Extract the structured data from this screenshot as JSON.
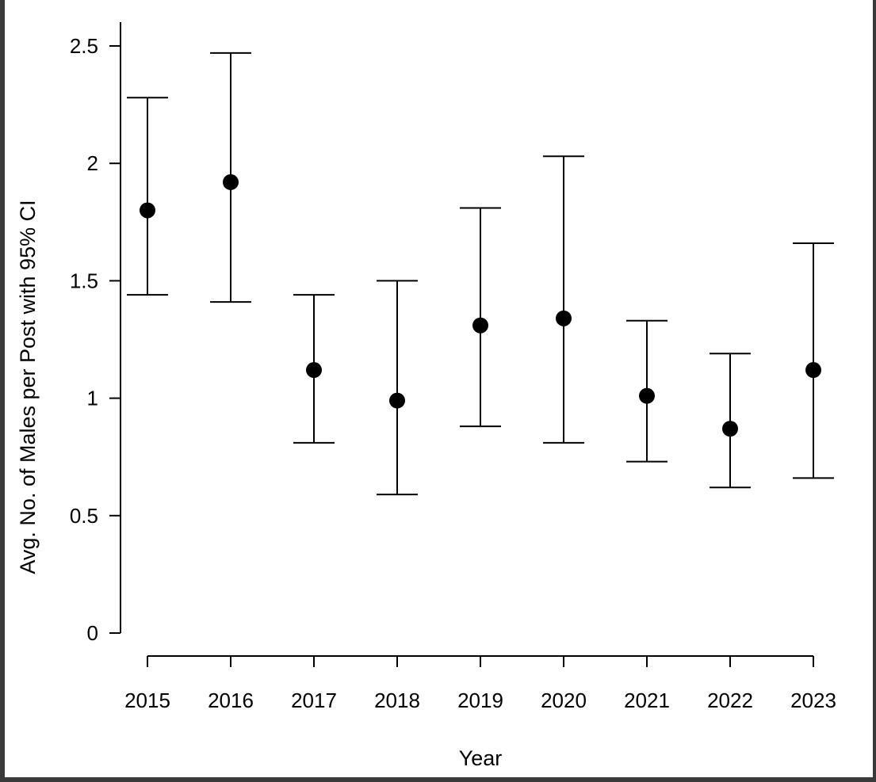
{
  "chart_data": {
    "type": "scatter",
    "error_bars": "95% CI",
    "xlabel": "Year",
    "ylabel": "Avg. No. of Males per Post with 95% CI",
    "categories": [
      "2015",
      "2016",
      "2017",
      "2018",
      "2019",
      "2020",
      "2021",
      "2022",
      "2023"
    ],
    "values": [
      1.8,
      1.92,
      1.12,
      0.99,
      1.31,
      1.34,
      1.01,
      0.87,
      1.12
    ],
    "lower": [
      1.44,
      1.41,
      0.81,
      0.59,
      0.88,
      0.81,
      0.73,
      0.62,
      0.66
    ],
    "upper": [
      2.28,
      2.47,
      1.44,
      1.5,
      1.81,
      2.03,
      1.33,
      1.19,
      1.66
    ],
    "y_ticks": [
      "0",
      "0.5",
      "1",
      "1.5",
      "2",
      "2.5"
    ],
    "ylim": [
      0,
      2.5
    ],
    "grid": false,
    "legend": "none",
    "marker_color": "#000000"
  }
}
